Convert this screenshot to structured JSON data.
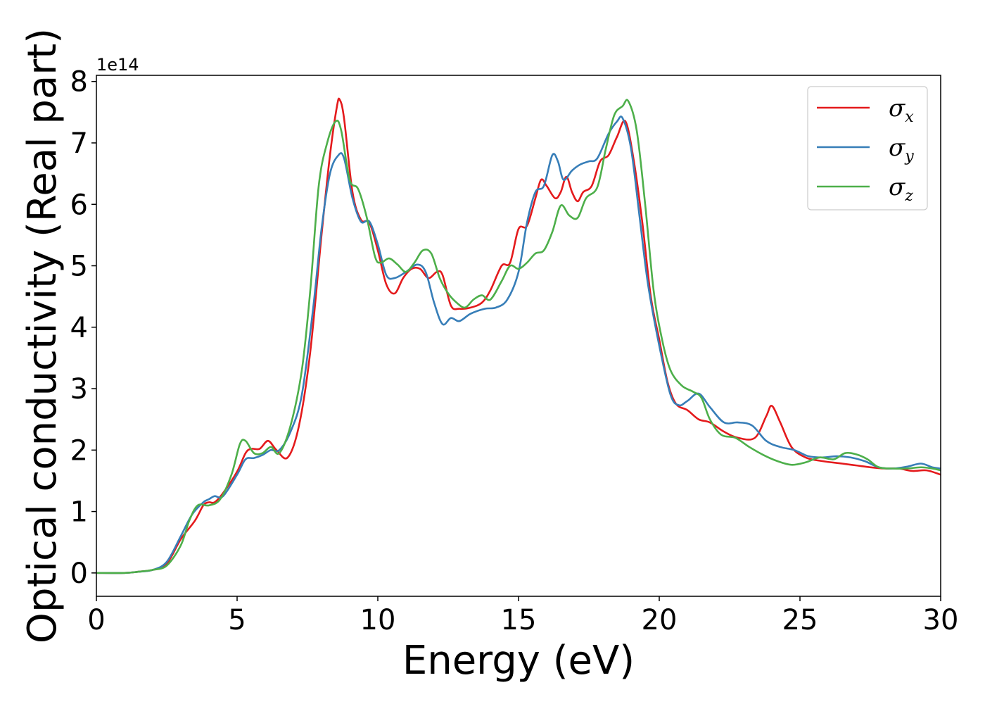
{
  "chart_data": {
    "type": "line",
    "xlabel": "Energy (eV)",
    "ylabel": "Optical conductivity (Real part)",
    "y_offset_label": "1e14",
    "xlim": [
      0,
      30
    ],
    "ylim": [
      -0.38,
      8.1
    ],
    "x_ticks": [
      0,
      5,
      10,
      15,
      20,
      25,
      30
    ],
    "y_ticks": [
      0,
      1,
      2,
      3,
      4,
      5,
      6,
      7,
      8
    ],
    "grid": false,
    "legend_position": "top-right",
    "series": [
      {
        "name": "σx",
        "symbol": "σ",
        "subscript": "x",
        "color": "#e41a1c",
        "points": [
          [
            0,
            0
          ],
          [
            1,
            0
          ],
          [
            1.5,
            0.02
          ],
          [
            2,
            0.05
          ],
          [
            2.5,
            0.15
          ],
          [
            3,
            0.55
          ],
          [
            3.5,
            0.85
          ],
          [
            3.8,
            1.1
          ],
          [
            4,
            1.15
          ],
          [
            4.2,
            1.15
          ],
          [
            4.5,
            1.3
          ],
          [
            5,
            1.65
          ],
          [
            5.3,
            1.95
          ],
          [
            5.5,
            2.02
          ],
          [
            5.8,
            2.02
          ],
          [
            6.1,
            2.15
          ],
          [
            6.4,
            2.0
          ],
          [
            6.8,
            1.88
          ],
          [
            7.2,
            2.4
          ],
          [
            7.6,
            3.6
          ],
          [
            8,
            5.5
          ],
          [
            8.3,
            6.8
          ],
          [
            8.55,
            7.6
          ],
          [
            8.65,
            7.7
          ],
          [
            8.8,
            7.4
          ],
          [
            9.1,
            6.2
          ],
          [
            9.4,
            5.75
          ],
          [
            9.7,
            5.7
          ],
          [
            10,
            5.25
          ],
          [
            10.3,
            4.7
          ],
          [
            10.6,
            4.55
          ],
          [
            10.9,
            4.8
          ],
          [
            11.2,
            4.95
          ],
          [
            11.5,
            4.95
          ],
          [
            11.8,
            4.8
          ],
          [
            12.1,
            4.9
          ],
          [
            12.3,
            4.85
          ],
          [
            12.6,
            4.35
          ],
          [
            12.9,
            4.3
          ],
          [
            13.3,
            4.32
          ],
          [
            13.7,
            4.4
          ],
          [
            14,
            4.6
          ],
          [
            14.4,
            5.0
          ],
          [
            14.7,
            5.05
          ],
          [
            15,
            5.6
          ],
          [
            15.3,
            5.65
          ],
          [
            15.6,
            6.1
          ],
          [
            15.8,
            6.4
          ],
          [
            16,
            6.3
          ],
          [
            16.3,
            6.1
          ],
          [
            16.5,
            6.2
          ],
          [
            16.7,
            6.45
          ],
          [
            16.9,
            6.2
          ],
          [
            17.1,
            6.05
          ],
          [
            17.3,
            6.2
          ],
          [
            17.6,
            6.3
          ],
          [
            17.9,
            6.7
          ],
          [
            18.2,
            6.8
          ],
          [
            18.5,
            7.1
          ],
          [
            18.8,
            7.35
          ],
          [
            19.1,
            6.7
          ],
          [
            19.4,
            5.7
          ],
          [
            19.7,
            4.5
          ],
          [
            20,
            3.8
          ],
          [
            20.3,
            3.1
          ],
          [
            20.6,
            2.75
          ],
          [
            21,
            2.65
          ],
          [
            21.4,
            2.5
          ],
          [
            21.8,
            2.45
          ],
          [
            22.3,
            2.3
          ],
          [
            22.8,
            2.2
          ],
          [
            23.4,
            2.2
          ],
          [
            23.8,
            2.55
          ],
          [
            24,
            2.72
          ],
          [
            24.3,
            2.45
          ],
          [
            24.7,
            2.05
          ],
          [
            25.2,
            1.88
          ],
          [
            25.8,
            1.82
          ],
          [
            26.5,
            1.78
          ],
          [
            27,
            1.75
          ],
          [
            27.5,
            1.72
          ],
          [
            28,
            1.7
          ],
          [
            28.5,
            1.7
          ],
          [
            29,
            1.66
          ],
          [
            29.5,
            1.67
          ],
          [
            30,
            1.6
          ]
        ]
      },
      {
        "name": "σy",
        "symbol": "σ",
        "subscript": "y",
        "color": "#377eb8",
        "points": [
          [
            0,
            0
          ],
          [
            1,
            0
          ],
          [
            1.5,
            0.02
          ],
          [
            2,
            0.05
          ],
          [
            2.5,
            0.18
          ],
          [
            3,
            0.6
          ],
          [
            3.4,
            0.95
          ],
          [
            3.8,
            1.15
          ],
          [
            4,
            1.2
          ],
          [
            4.2,
            1.25
          ],
          [
            4.5,
            1.25
          ],
          [
            5,
            1.6
          ],
          [
            5.3,
            1.85
          ],
          [
            5.6,
            1.87
          ],
          [
            5.9,
            1.92
          ],
          [
            6.2,
            2.0
          ],
          [
            6.5,
            2.0
          ],
          [
            6.9,
            2.3
          ],
          [
            7.3,
            2.9
          ],
          [
            7.7,
            4.3
          ],
          [
            8,
            5.6
          ],
          [
            8.3,
            6.5
          ],
          [
            8.6,
            6.8
          ],
          [
            8.8,
            6.75
          ],
          [
            9.1,
            6.1
          ],
          [
            9.4,
            5.72
          ],
          [
            9.7,
            5.72
          ],
          [
            10,
            5.35
          ],
          [
            10.3,
            4.85
          ],
          [
            10.6,
            4.8
          ],
          [
            11,
            4.9
          ],
          [
            11.4,
            5.02
          ],
          [
            11.7,
            4.9
          ],
          [
            12,
            4.4
          ],
          [
            12.3,
            4.05
          ],
          [
            12.6,
            4.15
          ],
          [
            12.9,
            4.1
          ],
          [
            13.3,
            4.22
          ],
          [
            13.8,
            4.3
          ],
          [
            14.2,
            4.32
          ],
          [
            14.6,
            4.45
          ],
          [
            15,
            4.9
          ],
          [
            15.3,
            5.7
          ],
          [
            15.6,
            6.2
          ],
          [
            15.9,
            6.3
          ],
          [
            16.2,
            6.8
          ],
          [
            16.4,
            6.7
          ],
          [
            16.6,
            6.4
          ],
          [
            16.9,
            6.55
          ],
          [
            17.2,
            6.65
          ],
          [
            17.5,
            6.7
          ],
          [
            17.8,
            6.75
          ],
          [
            18.2,
            7.15
          ],
          [
            18.5,
            7.35
          ],
          [
            18.7,
            7.4
          ],
          [
            19,
            6.9
          ],
          [
            19.3,
            5.8
          ],
          [
            19.6,
            4.7
          ],
          [
            20,
            3.7
          ],
          [
            20.4,
            2.9
          ],
          [
            20.7,
            2.73
          ],
          [
            21,
            2.8
          ],
          [
            21.4,
            2.92
          ],
          [
            21.8,
            2.7
          ],
          [
            22.3,
            2.45
          ],
          [
            22.8,
            2.45
          ],
          [
            23.3,
            2.4
          ],
          [
            23.8,
            2.15
          ],
          [
            24.3,
            2.05
          ],
          [
            24.8,
            2.0
          ],
          [
            25.3,
            1.9
          ],
          [
            25.8,
            1.88
          ],
          [
            26.3,
            1.9
          ],
          [
            26.8,
            1.88
          ],
          [
            27.3,
            1.82
          ],
          [
            27.8,
            1.72
          ],
          [
            28.3,
            1.7
          ],
          [
            28.8,
            1.73
          ],
          [
            29.3,
            1.78
          ],
          [
            29.7,
            1.72
          ],
          [
            30,
            1.7
          ]
        ]
      },
      {
        "name": "σz",
        "symbol": "σ",
        "subscript": "z",
        "color": "#4daf4a",
        "points": [
          [
            0,
            0
          ],
          [
            1,
            0
          ],
          [
            1.5,
            0.02
          ],
          [
            2,
            0.05
          ],
          [
            2.5,
            0.12
          ],
          [
            3,
            0.45
          ],
          [
            3.3,
            0.85
          ],
          [
            3.6,
            1.1
          ],
          [
            4,
            1.1
          ],
          [
            4.4,
            1.2
          ],
          [
            4.8,
            1.6
          ],
          [
            5.1,
            2.1
          ],
          [
            5.3,
            2.15
          ],
          [
            5.6,
            1.95
          ],
          [
            5.9,
            1.95
          ],
          [
            6.2,
            2.05
          ],
          [
            6.5,
            1.95
          ],
          [
            6.9,
            2.4
          ],
          [
            7.3,
            3.3
          ],
          [
            7.6,
            4.6
          ],
          [
            7.9,
            6.3
          ],
          [
            8.2,
            7.0
          ],
          [
            8.5,
            7.35
          ],
          [
            8.7,
            7.2
          ],
          [
            9,
            6.4
          ],
          [
            9.3,
            6.25
          ],
          [
            9.6,
            5.8
          ],
          [
            9.9,
            5.15
          ],
          [
            10.1,
            5.05
          ],
          [
            10.4,
            5.12
          ],
          [
            10.7,
            5.02
          ],
          [
            11,
            4.9
          ],
          [
            11.3,
            5.05
          ],
          [
            11.6,
            5.25
          ],
          [
            11.9,
            5.2
          ],
          [
            12.2,
            4.8
          ],
          [
            12.5,
            4.55
          ],
          [
            12.8,
            4.4
          ],
          [
            13.1,
            4.32
          ],
          [
            13.4,
            4.45
          ],
          [
            13.7,
            4.52
          ],
          [
            14,
            4.45
          ],
          [
            14.4,
            4.75
          ],
          [
            14.7,
            5.0
          ],
          [
            15,
            4.95
          ],
          [
            15.3,
            5.05
          ],
          [
            15.6,
            5.2
          ],
          [
            15.9,
            5.25
          ],
          [
            16.2,
            5.55
          ],
          [
            16.5,
            5.98
          ],
          [
            16.8,
            5.82
          ],
          [
            17.1,
            5.78
          ],
          [
            17.4,
            6.1
          ],
          [
            17.8,
            6.28
          ],
          [
            18.1,
            6.9
          ],
          [
            18.4,
            7.45
          ],
          [
            18.7,
            7.6
          ],
          [
            18.9,
            7.68
          ],
          [
            19.2,
            7.2
          ],
          [
            19.5,
            6.0
          ],
          [
            19.8,
            4.6
          ],
          [
            20.1,
            3.8
          ],
          [
            20.4,
            3.3
          ],
          [
            20.8,
            3.05
          ],
          [
            21.2,
            2.95
          ],
          [
            21.5,
            2.85
          ],
          [
            21.8,
            2.5
          ],
          [
            22.2,
            2.25
          ],
          [
            22.7,
            2.2
          ],
          [
            23.2,
            2.05
          ],
          [
            23.7,
            1.92
          ],
          [
            24.2,
            1.82
          ],
          [
            24.7,
            1.76
          ],
          [
            25.2,
            1.8
          ],
          [
            25.7,
            1.88
          ],
          [
            26.2,
            1.85
          ],
          [
            26.6,
            1.95
          ],
          [
            27,
            1.93
          ],
          [
            27.4,
            1.85
          ],
          [
            27.8,
            1.72
          ],
          [
            28.3,
            1.7
          ],
          [
            28.8,
            1.7
          ],
          [
            29.3,
            1.72
          ],
          [
            29.7,
            1.7
          ],
          [
            30,
            1.67
          ]
        ]
      }
    ]
  }
}
